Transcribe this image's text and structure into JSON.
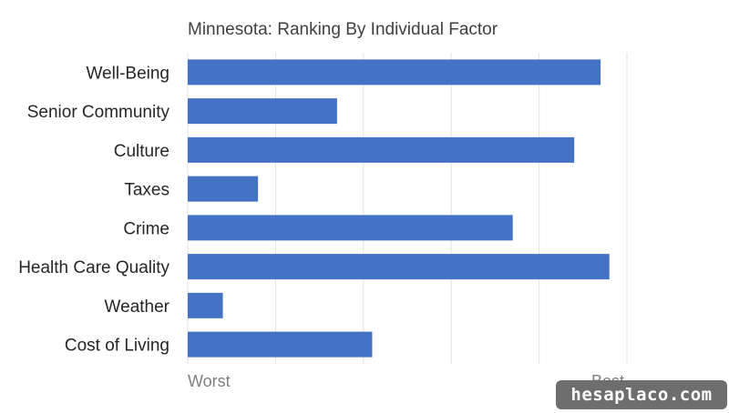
{
  "chart_data": {
    "type": "bar",
    "orientation": "horizontal",
    "title": "Minnesota: Ranking By Individual Factor",
    "categories": [
      "Well-Being",
      "Senior Community",
      "Culture",
      "Taxes",
      "Crime",
      "Health Care Quality",
      "Weather",
      "Cost of Living"
    ],
    "values": [
      94,
      34,
      88,
      16,
      74,
      96,
      8,
      42
    ],
    "xlim": [
      0,
      100
    ],
    "x_tick_labels": [
      "Worst",
      "Best"
    ],
    "grid": true,
    "bar_color": "#4472C4"
  },
  "watermark": "hesaplaco.com"
}
